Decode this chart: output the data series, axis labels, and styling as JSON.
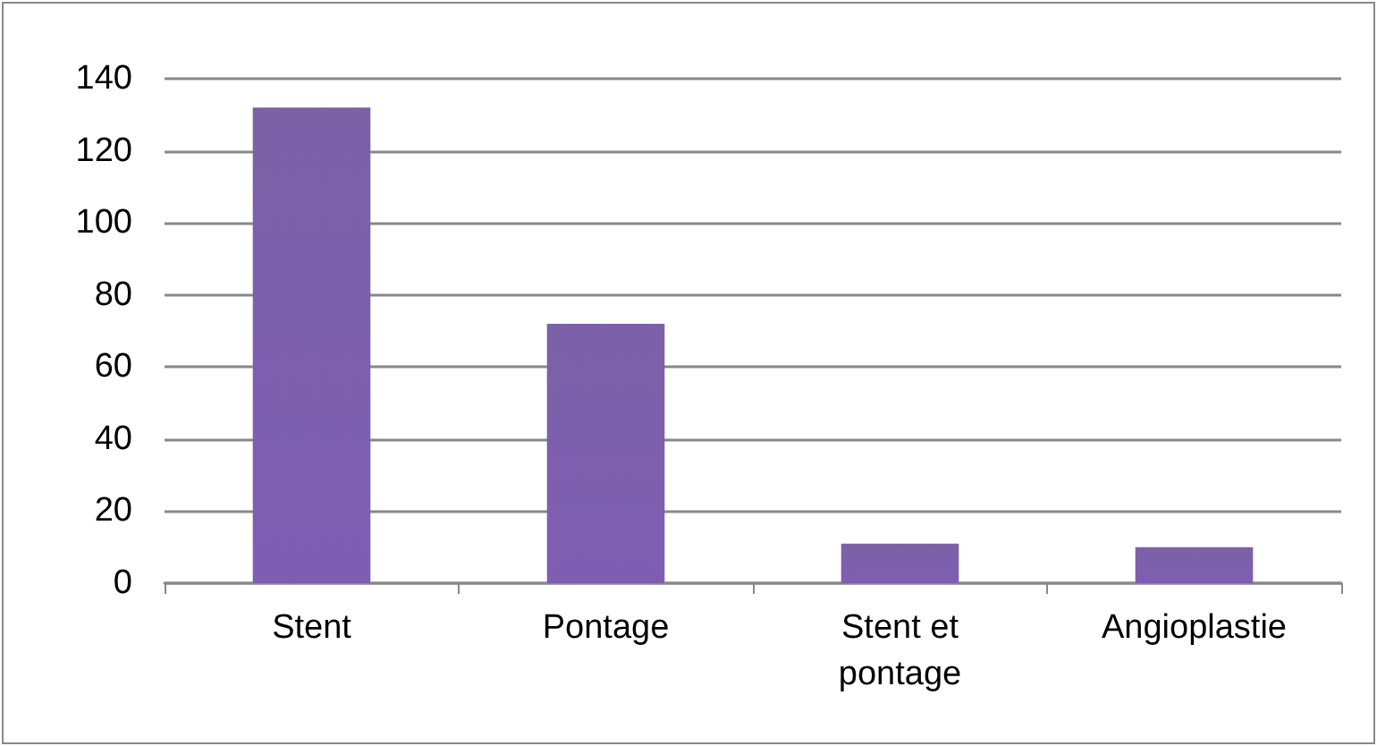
{
  "chart_data": {
    "type": "bar",
    "categories": [
      "Stent",
      "Pontage",
      "Stent et\npontage",
      "Angioplastie"
    ],
    "values": [
      132,
      72,
      11,
      10
    ],
    "color": "#7154a0",
    "ylim": [
      0,
      140
    ],
    "yticks": [
      0,
      20,
      40,
      60,
      80,
      100,
      120,
      140
    ],
    "grid": "y"
  }
}
